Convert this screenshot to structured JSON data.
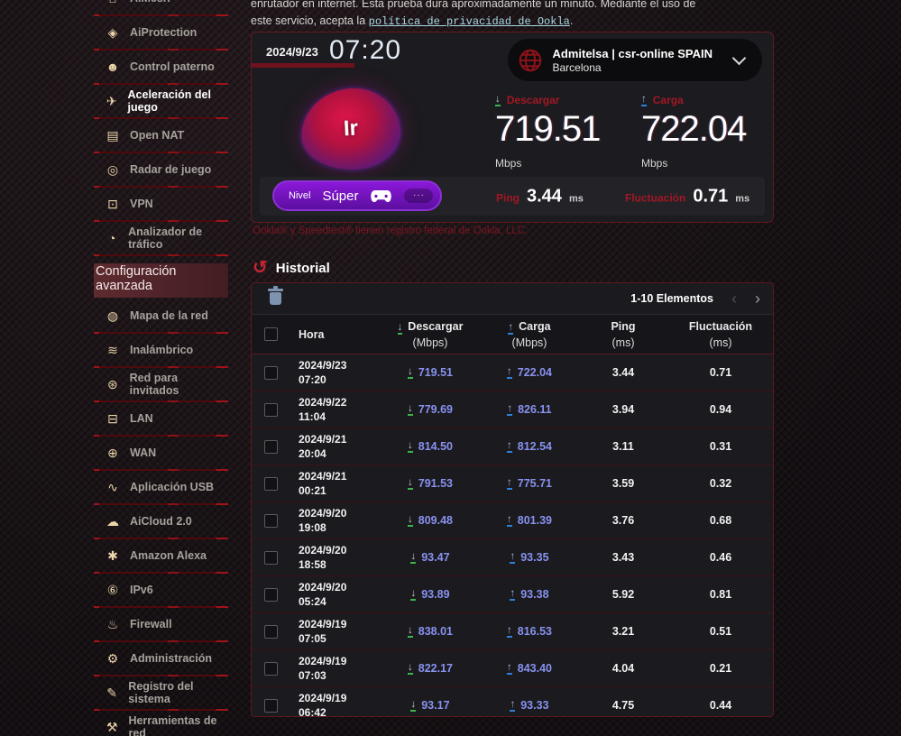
{
  "intro": {
    "line1": "enrutador en internet. Esta prueba dura aproximadamente un minuto. Mediante el uso de",
    "line2_prefix": "este servicio, acepta la ",
    "link_text": "política de privacidad de Ookla",
    "line2_suffix": "."
  },
  "sidebar": {
    "items": [
      {
        "label": "AiMesh",
        "icon": "aimesh-icon",
        "glyph": "⌂"
      },
      {
        "label": "AiProtection",
        "icon": "shield-icon",
        "glyph": "◈"
      },
      {
        "label": "Control paterno",
        "icon": "parental-control-icon",
        "glyph": "☻"
      },
      {
        "label": "Aceleración del juego",
        "icon": "rocket-icon",
        "glyph": "✈",
        "active": true
      },
      {
        "label": "Open NAT",
        "icon": "server-icon",
        "glyph": "▤"
      },
      {
        "label": "Radar de juego",
        "icon": "radar-icon",
        "glyph": "◎"
      },
      {
        "label": "VPN",
        "icon": "vpn-icon",
        "glyph": "⊡"
      },
      {
        "label": "Analizador de tráfico",
        "icon": "traffic-analyzer-icon",
        "glyph": "◔"
      },
      {
        "type": "section",
        "label": "Configuración avanzada"
      },
      {
        "label": "Mapa de la red",
        "icon": "network-map-icon",
        "glyph": "◍"
      },
      {
        "label": "Inalámbrico",
        "icon": "wireless-icon",
        "glyph": "≋"
      },
      {
        "label": "Red para invitados",
        "icon": "guest-network-icon",
        "glyph": "⊛"
      },
      {
        "label": "LAN",
        "icon": "lan-icon",
        "glyph": "⊟"
      },
      {
        "label": "WAN",
        "icon": "wan-globe-icon",
        "glyph": "⊕"
      },
      {
        "label": "Aplicación USB",
        "icon": "usb-icon",
        "glyph": "∿"
      },
      {
        "label": "AiCloud 2.0",
        "icon": "cloud-icon",
        "glyph": "☁"
      },
      {
        "label": "Amazon Alexa",
        "icon": "alexa-icon",
        "glyph": "✱"
      },
      {
        "label": "IPv6",
        "icon": "ipv6-icon",
        "glyph": "⑥"
      },
      {
        "label": "Firewall",
        "icon": "firewall-icon",
        "glyph": "♨"
      },
      {
        "label": "Administración",
        "icon": "admin-gear-icon",
        "glyph": "⚙"
      },
      {
        "label": "Registro del sistema",
        "icon": "system-log-icon",
        "glyph": "✎"
      },
      {
        "label": "Herramientas de red",
        "icon": "network-tools-icon",
        "glyph": "⚒"
      }
    ]
  },
  "speedtest": {
    "date": "2024/9/23",
    "time": "07:20",
    "isp": {
      "name": "Admitelsa | csr-online SPAIN",
      "city": "Barcelona"
    },
    "blob_label": "Ir",
    "download": {
      "label": "Descargar",
      "value": "719.51",
      "unit": "Mbps",
      "arrow_glyph": "↓"
    },
    "upload": {
      "label": "Carga",
      "value": "722.04",
      "unit": "Mbps",
      "arrow_glyph": "↑"
    },
    "level": {
      "label": "Nivel",
      "value": "Súper",
      "more": "···"
    },
    "ping": {
      "label": "Ping",
      "value": "3.44",
      "unit": "ms"
    },
    "jitter": {
      "label": "Fluctuación",
      "value": "0.71",
      "unit": "ms"
    }
  },
  "trademark": "Ookla® y Speedtest® tienen registro federal de Ookla, LLC.",
  "history": {
    "title": "Historial",
    "history_icon_glyph": "↺",
    "pagination": {
      "label": "1-10 Elementos",
      "prev_glyph": "‹",
      "next_glyph": "›"
    },
    "arrow_glyphs": {
      "download": "↓",
      "upload": "↑"
    },
    "columns": [
      {
        "title": "Hora"
      },
      {
        "title": "Descargar",
        "sub": "(Mbps)",
        "arrow": "down"
      },
      {
        "title": "Carga",
        "sub": "(Mbps)",
        "arrow": "up"
      },
      {
        "title": "Ping",
        "sub": "(ms)"
      },
      {
        "title": "Fluctuación",
        "sub": "(ms)"
      }
    ],
    "rows": [
      {
        "date": "2024/9/23",
        "time": "07:20",
        "download": "719.51",
        "upload": "722.04",
        "ping": "3.44",
        "jitter": "0.71"
      },
      {
        "date": "2024/9/22",
        "time": "11:04",
        "download": "779.69",
        "upload": "826.11",
        "ping": "3.94",
        "jitter": "0.94"
      },
      {
        "date": "2024/9/21",
        "time": "20:04",
        "download": "814.50",
        "upload": "812.54",
        "ping": "3.11",
        "jitter": "0.31"
      },
      {
        "date": "2024/9/21",
        "time": "00:21",
        "download": "791.53",
        "upload": "775.71",
        "ping": "3.59",
        "jitter": "0.32"
      },
      {
        "date": "2024/9/20",
        "time": "19:08",
        "download": "809.48",
        "upload": "801.39",
        "ping": "3.76",
        "jitter": "0.68"
      },
      {
        "date": "2024/9/20",
        "time": "18:58",
        "download": "93.47",
        "upload": "93.35",
        "ping": "3.43",
        "jitter": "0.46"
      },
      {
        "date": "2024/9/20",
        "time": "05:24",
        "download": "93.89",
        "upload": "93.38",
        "ping": "5.92",
        "jitter": "0.81"
      },
      {
        "date": "2024/9/19",
        "time": "07:05",
        "download": "838.01",
        "upload": "816.53",
        "ping": "3.21",
        "jitter": "0.51"
      },
      {
        "date": "2024/9/19",
        "time": "07:03",
        "download": "822.17",
        "upload": "843.40",
        "ping": "4.04",
        "jitter": "0.21"
      },
      {
        "date": "2024/9/19",
        "time": "06:42",
        "download": "93.17",
        "upload": "93.33",
        "ping": "4.75",
        "jitter": "0.44"
      }
    ]
  },
  "colors": {
    "accent_red": "#a31824",
    "border_red": "#5d181d",
    "link_blue": "#8892f0",
    "download_green": "#3cb54c",
    "upload_blue": "#2f80d8",
    "level_purple": "#7a16c0",
    "icon_tan": "#ecd5ab"
  }
}
